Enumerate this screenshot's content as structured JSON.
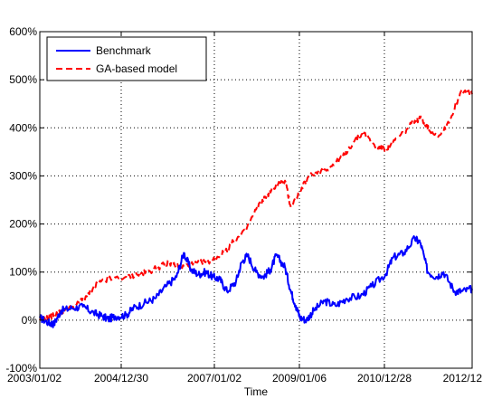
{
  "chart_data": {
    "type": "line",
    "title": "",
    "xlabel": "Time",
    "ylabel": "",
    "x_ticks": [
      "2003/01/02",
      "2004/12/30",
      "2007/01/02",
      "2009/01/06",
      "2010/12/28",
      "2012/12"
    ],
    "y_ticks": [
      "-100%",
      "0%",
      "100%",
      "200%",
      "300%",
      "400%",
      "500%",
      "600%"
    ],
    "ylim": [
      -100,
      600
    ],
    "y_unit": "%",
    "grid": true,
    "legend_position": "top-left",
    "series": [
      {
        "name": "Benchmark",
        "color": "#0000ff",
        "style": "solid",
        "points": [
          [
            "2003-01-02",
            5
          ],
          [
            "2003-03-15",
            -5
          ],
          [
            "2003-05-01",
            -8
          ],
          [
            "2003-07-01",
            20
          ],
          [
            "2003-10-01",
            25
          ],
          [
            "2004-01-01",
            28
          ],
          [
            "2004-04-01",
            15
          ],
          [
            "2004-06-15",
            8
          ],
          [
            "2004-08-01",
            2
          ],
          [
            "2004-10-01",
            8
          ],
          [
            "2004-12-30",
            10
          ],
          [
            "2005-03-01",
            25
          ],
          [
            "2005-06-01",
            35
          ],
          [
            "2005-09-01",
            45
          ],
          [
            "2005-12-01",
            70
          ],
          [
            "2006-03-01",
            90
          ],
          [
            "2006-05-01",
            140
          ],
          [
            "2006-07-01",
            105
          ],
          [
            "2006-09-01",
            95
          ],
          [
            "2006-11-01",
            100
          ],
          [
            "2007-01-02",
            90
          ],
          [
            "2007-03-01",
            85
          ],
          [
            "2007-05-01",
            60
          ],
          [
            "2007-07-15",
            80
          ],
          [
            "2007-09-01",
            120
          ],
          [
            "2007-10-20",
            135
          ],
          [
            "2008-01-01",
            100
          ],
          [
            "2008-03-01",
            90
          ],
          [
            "2008-05-01",
            105
          ],
          [
            "2008-06-20",
            135
          ],
          [
            "2008-09-01",
            110
          ],
          [
            "2008-10-20",
            60
          ],
          [
            "2008-12-01",
            30
          ],
          [
            "2009-01-06",
            5
          ],
          [
            "2009-03-01",
            0
          ],
          [
            "2009-05-01",
            20
          ],
          [
            "2009-08-01",
            40
          ],
          [
            "2009-11-01",
            30
          ],
          [
            "2010-02-01",
            45
          ],
          [
            "2010-06-01",
            50
          ],
          [
            "2010-09-01",
            70
          ],
          [
            "2010-12-28",
            95
          ],
          [
            "2011-03-01",
            130
          ],
          [
            "2011-06-01",
            140
          ],
          [
            "2011-09-01",
            170
          ],
          [
            "2011-10-20",
            160
          ],
          [
            "2011-12-20",
            100
          ],
          [
            "2012-03-01",
            90
          ],
          [
            "2012-05-01",
            100
          ],
          [
            "2012-08-01",
            60
          ],
          [
            "2012-10-01",
            60
          ],
          [
            "2012-12-28",
            65
          ]
        ]
      },
      {
        "name": "GA-based model",
        "color": "#ff0000",
        "style": "dashed",
        "points": [
          [
            "2003-01-02",
            0
          ],
          [
            "2003-03-15",
            5
          ],
          [
            "2003-05-01",
            10
          ],
          [
            "2003-08-01",
            20
          ],
          [
            "2003-11-01",
            30
          ],
          [
            "2004-02-01",
            50
          ],
          [
            "2004-05-01",
            75
          ],
          [
            "2004-08-01",
            85
          ],
          [
            "2004-12-30",
            90
          ],
          [
            "2005-04-01",
            95
          ],
          [
            "2005-07-01",
            100
          ],
          [
            "2005-10-01",
            110
          ],
          [
            "2006-01-01",
            120
          ],
          [
            "2006-04-01",
            110
          ],
          [
            "2006-07-01",
            115
          ],
          [
            "2006-10-01",
            120
          ],
          [
            "2007-01-02",
            125
          ],
          [
            "2007-04-01",
            140
          ],
          [
            "2007-07-01",
            165
          ],
          [
            "2007-10-01",
            185
          ],
          [
            "2008-01-01",
            230
          ],
          [
            "2008-04-01",
            260
          ],
          [
            "2008-06-15",
            280
          ],
          [
            "2008-09-01",
            290
          ],
          [
            "2008-10-20",
            235
          ],
          [
            "2009-01-06",
            270
          ],
          [
            "2009-04-01",
            300
          ],
          [
            "2009-07-01",
            310
          ],
          [
            "2009-10-01",
            320
          ],
          [
            "2010-01-01",
            340
          ],
          [
            "2010-04-01",
            370
          ],
          [
            "2010-07-01",
            390
          ],
          [
            "2010-10-01",
            360
          ],
          [
            "2010-12-28",
            355
          ],
          [
            "2011-03-01",
            370
          ],
          [
            "2011-06-01",
            390
          ],
          [
            "2011-09-01",
            415
          ],
          [
            "2011-11-01",
            420
          ],
          [
            "2012-01-01",
            395
          ],
          [
            "2012-04-01",
            385
          ],
          [
            "2012-07-01",
            420
          ],
          [
            "2012-10-01",
            480
          ],
          [
            "2012-12-28",
            470
          ]
        ]
      }
    ]
  }
}
